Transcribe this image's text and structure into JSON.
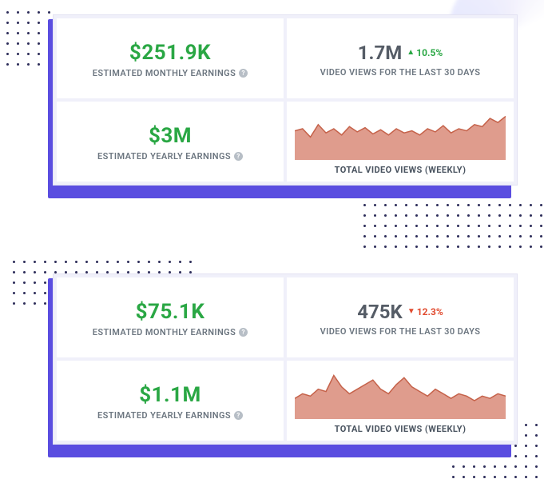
{
  "colors": {
    "accent": "#5a4de0",
    "green": "#2aa744",
    "red": "#e14b2f",
    "chart_fill": "#d98b79",
    "chart_stroke": "#c5624a",
    "text_muted": "#6c7680",
    "text_value": "#555c66",
    "cell_bg": "#ffffff",
    "panel_bg": "#f0f0fa"
  },
  "cards": [
    {
      "monthly": {
        "value": "$251.9K",
        "label": "ESTIMATED MONTHLY EARNINGS"
      },
      "yearly": {
        "value": "$3M",
        "label": "ESTIMATED YEARLY EARNINGS"
      },
      "views30": {
        "value": "1.7M",
        "delta": "10.5%",
        "direction": "up",
        "label": "VIDEO VIEWS FOR THE LAST 30 DAYS"
      },
      "chart": {
        "label": "TOTAL VIDEO VIEWS (WEEKLY)",
        "type": "area",
        "points": [
          28,
          30,
          22,
          34,
          26,
          30,
          24,
          32,
          27,
          31,
          25,
          29,
          24,
          30,
          26,
          28,
          24,
          30,
          27,
          33,
          26,
          30,
          28,
          34,
          32,
          40,
          36,
          42
        ]
      }
    },
    {
      "monthly": {
        "value": "$75.1K",
        "label": "ESTIMATED MONTHLY EARNINGS"
      },
      "yearly": {
        "value": "$1.1M",
        "label": "ESTIMATED YEARLY EARNINGS"
      },
      "views30": {
        "value": "475K",
        "delta": "12.3%",
        "direction": "down",
        "label": "VIDEO VIEWS FOR THE LAST 30 DAYS"
      },
      "chart": {
        "label": "TOTAL VIDEO VIEWS (WEEKLY)",
        "type": "area",
        "points": [
          18,
          22,
          20,
          26,
          24,
          38,
          28,
          22,
          26,
          30,
          34,
          26,
          22,
          30,
          36,
          28,
          24,
          20,
          26,
          22,
          18,
          22,
          20,
          16,
          20,
          18,
          22,
          20
        ]
      }
    }
  ]
}
